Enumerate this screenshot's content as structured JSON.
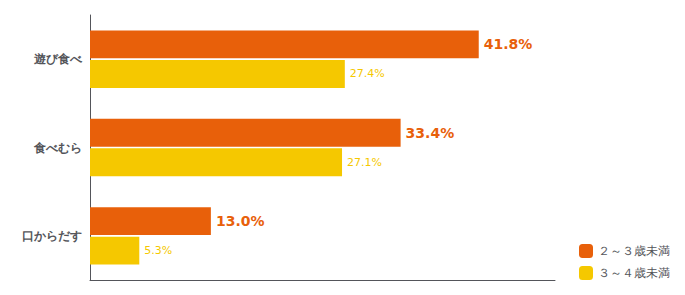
{
  "chart_data": {
    "type": "bar",
    "orientation": "horizontal",
    "categories": [
      "遊び食べ",
      "食べむら",
      "口からだす"
    ],
    "series": [
      {
        "name": "２～３歳未満",
        "color": "#E8600A",
        "values": [
          41.8,
          33.4,
          13.0
        ],
        "value_labels": [
          "41.8%",
          "33.4%",
          "13.0%"
        ]
      },
      {
        "name": "３～４歳未満",
        "color": "#F5C800",
        "values": [
          27.4,
          27.1,
          5.3
        ],
        "value_labels": [
          "27.4%",
          "27.1%",
          "5.3%"
        ]
      }
    ],
    "xlim": [
      0,
      50
    ],
    "grid": false,
    "legend": "lower right",
    "data_labels": true,
    "tick_labels": "y"
  }
}
